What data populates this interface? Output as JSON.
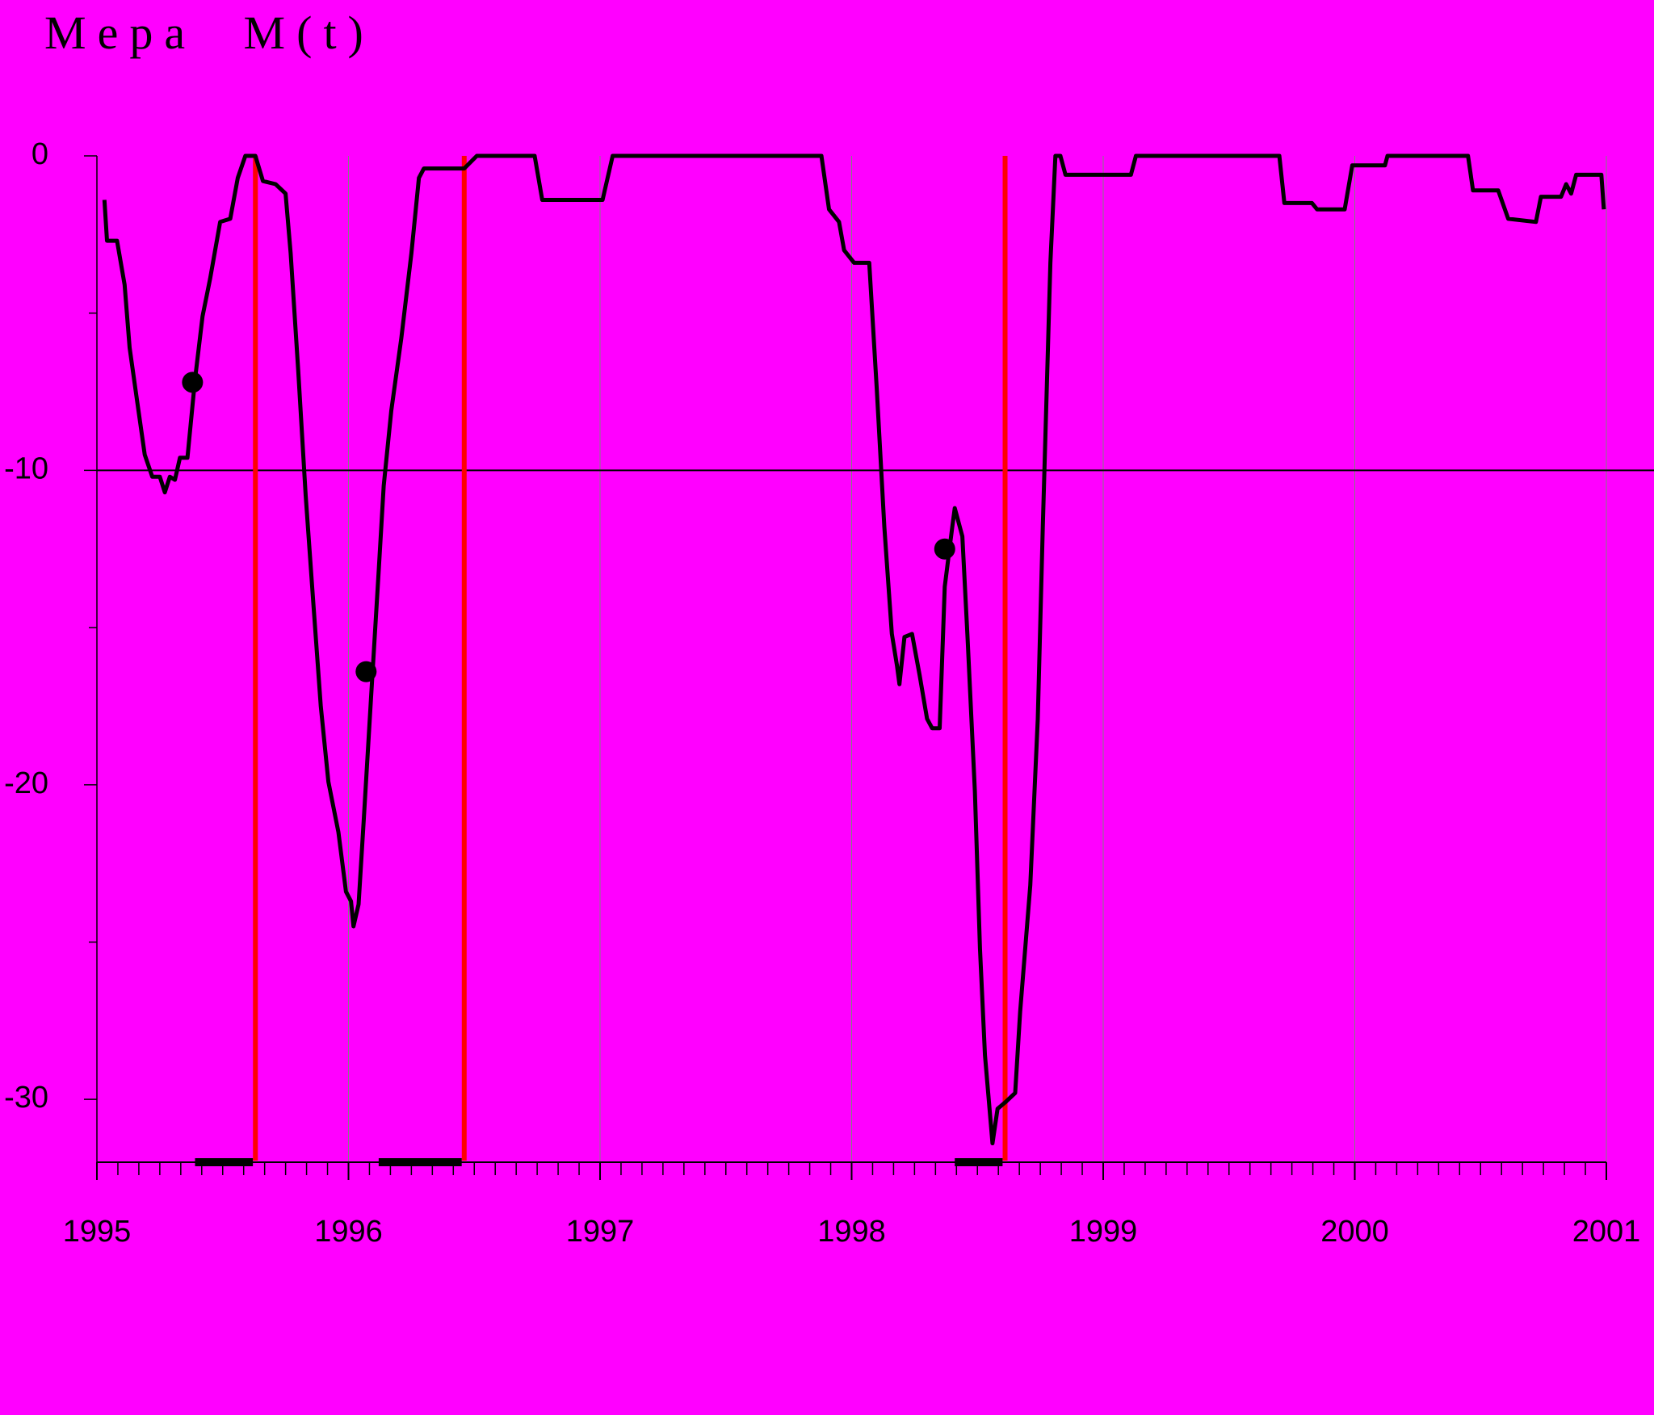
{
  "chart_data": {
    "type": "line",
    "title": "Mepa M(t)",
    "background": "#ff00ff",
    "color": "#000000",
    "x": [
      1995.03,
      1995.04,
      1995.08,
      1995.11,
      1995.13,
      1995.16,
      1995.19,
      1995.22,
      1995.25,
      1995.27,
      1995.29,
      1995.31,
      1995.33,
      1995.36,
      1995.39,
      1995.42,
      1995.45,
      1995.49,
      1995.53,
      1995.56,
      1995.59,
      1995.63,
      1995.66,
      1995.71,
      1995.75,
      1995.77,
      1995.8,
      1995.83,
      1995.86,
      1995.89,
      1995.92,
      1995.96,
      1995.99,
      1996.01,
      1996.02,
      1996.04,
      1996.06,
      1996.09,
      1996.12,
      1996.14,
      1996.17,
      1996.21,
      1996.25,
      1996.28,
      1996.3,
      1996.46,
      1996.51,
      1996.74,
      1996.77,
      1997.01,
      1997.05,
      1997.88,
      1997.91,
      1997.95,
      1997.97,
      1998.01,
      1998.07,
      1998.1,
      1998.13,
      1998.16,
      1998.18,
      1998.19,
      1998.21,
      1998.24,
      1998.27,
      1998.3,
      1998.32,
      1998.35,
      1998.37,
      1998.4,
      1998.41,
      1998.44,
      1998.46,
      1998.49,
      1998.51,
      1998.53,
      1998.56,
      1998.58,
      1998.61,
      1998.65,
      1998.67,
      1998.71,
      1998.74,
      1998.76,
      1998.79,
      1998.81,
      1998.83,
      1998.85,
      1999.11,
      1999.13,
      1999.7,
      1999.72,
      1999.83,
      1999.85,
      1999.96,
      1999.99,
      2000.12,
      2000.13,
      2000.45,
      2000.47,
      2000.57,
      2000.61,
      2000.72,
      2000.74,
      2000.82,
      2000.84,
      2000.86,
      2000.88,
      2000.98,
      2000.99
    ],
    "values": [
      -1.4,
      -2.7,
      -2.7,
      -4.1,
      -6.1,
      -7.8,
      -9.5,
      -10.2,
      -10.2,
      -10.7,
      -10.2,
      -10.3,
      -9.6,
      -9.6,
      -7.1,
      -5.1,
      -3.9,
      -2.1,
      -2.0,
      -0.7,
      0,
      0,
      -0.8,
      -0.9,
      -1.2,
      -3.1,
      -6.8,
      -10.8,
      -14.2,
      -17.5,
      -19.9,
      -21.5,
      -23.4,
      -23.7,
      -24.5,
      -23.8,
      -21.2,
      -17.2,
      -13.2,
      -10.5,
      -8.1,
      -5.8,
      -3.1,
      -0.7,
      -0.4,
      -0.4,
      0,
      0,
      -1.4,
      -1.4,
      0,
      0,
      -1.7,
      -2.1,
      -3.0,
      -3.4,
      -3.4,
      -7.4,
      -11.8,
      -15.2,
      -16.2,
      -16.8,
      -15.3,
      -15.2,
      -16.5,
      -17.9,
      -18.2,
      -18.2,
      -13.7,
      -11.8,
      -11.2,
      -12.1,
      -15.2,
      -20.2,
      -25.2,
      -28.6,
      -31.4,
      -30.3,
      -30.1,
      -29.8,
      -27.2,
      -23.2,
      -17.9,
      -11.8,
      -3.4,
      0,
      0,
      -0.6,
      -0.6,
      0,
      0,
      -1.5,
      -1.5,
      -1.7,
      -1.7,
      -0.3,
      -0.3,
      0,
      0,
      -1.1,
      -1.1,
      -2.0,
      -2.1,
      -1.3,
      -1.3,
      -0.9,
      -1.2,
      -0.6,
      -0.6,
      -1.7
    ],
    "markers": {
      "x": [
        1995.38,
        1996.07,
        1998.37
      ],
      "y": [
        -7.2,
        -16.4,
        -12.5
      ]
    },
    "red_lines": {
      "x": [
        1995.63,
        1996.46,
        1998.61
      ],
      "color": "#ff0000"
    },
    "bottom_bars": {
      "starts": [
        1995.39,
        1996.12,
        1998.41
      ],
      "ends": [
        1995.62,
        1996.45,
        1998.6
      ]
    },
    "hline": -10,
    "xlim": [
      1995,
      2001
    ],
    "ylim": [
      -32,
      0
    ],
    "xticks": [
      1995,
      1996,
      1997,
      1998,
      1999,
      2000,
      2001
    ],
    "yticks": [
      0,
      -10,
      -20,
      -30
    ],
    "grid": "x"
  }
}
